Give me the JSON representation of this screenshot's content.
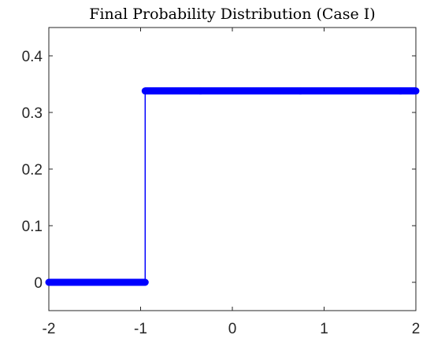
{
  "chart_data": {
    "type": "scatter",
    "title": "Final Probability Distribution (Case I)",
    "xlabel": "",
    "ylabel": "",
    "xlim": [
      -2,
      2
    ],
    "ylim": [
      -0.05,
      0.45
    ],
    "x_ticks": [
      -2,
      -1,
      0,
      1,
      2
    ],
    "x_tick_labels": [
      "-2",
      "-1",
      "0",
      "1",
      "2"
    ],
    "y_ticks": [
      0,
      0.1,
      0.2,
      0.3,
      0.4
    ],
    "y_tick_labels": [
      "0",
      "0.1",
      "0.2",
      "0.3",
      "0.4"
    ],
    "grid": false,
    "legend": false,
    "colors": {
      "series": "#0000ff",
      "axis": "#262626",
      "background": "#ffffff"
    },
    "series": [
      {
        "line": true,
        "markers": "filled-circle",
        "points": [
          {
            "x_from": -2,
            "x_to": -0.95,
            "y": 0
          },
          {
            "x_from": -0.95,
            "x_to": 2,
            "y": 0.338
          }
        ]
      }
    ]
  }
}
